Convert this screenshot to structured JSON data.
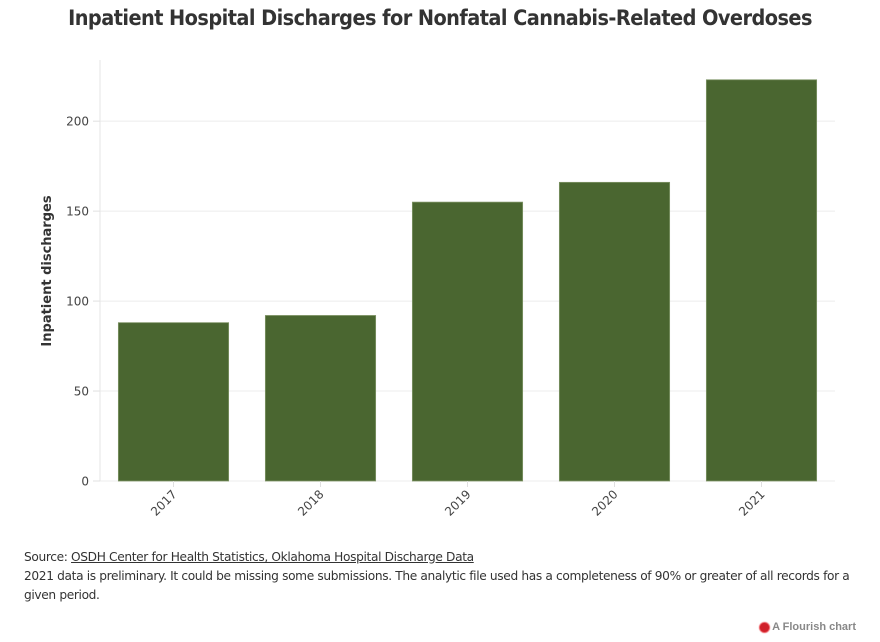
{
  "chart_data": {
    "type": "bar",
    "title": "Inpatient Hospital Discharges for Nonfatal Cannabis-Related Overdoses",
    "xlabel": "",
    "ylabel": "Inpatient discharges",
    "categories": [
      "2017",
      "2018",
      "2019",
      "2020",
      "2021"
    ],
    "values": [
      88,
      92,
      155,
      166,
      223
    ],
    "ylim": [
      0,
      234
    ],
    "yticks": [
      0,
      50,
      100,
      150,
      200
    ],
    "grid": true,
    "bar_color": "#4a6630",
    "x_label_rotation": -45
  },
  "footer": {
    "source_prefix": "Source: ",
    "source_link": "OSDH Center for Health Statistics, Oklahoma Hospital Discharge Data",
    "note": "2021 data is preliminary. It could be missing some submissions. The analytic file used has a completeness of 90% or greater of all records for a given period.",
    "credit": "A Flourish chart"
  }
}
